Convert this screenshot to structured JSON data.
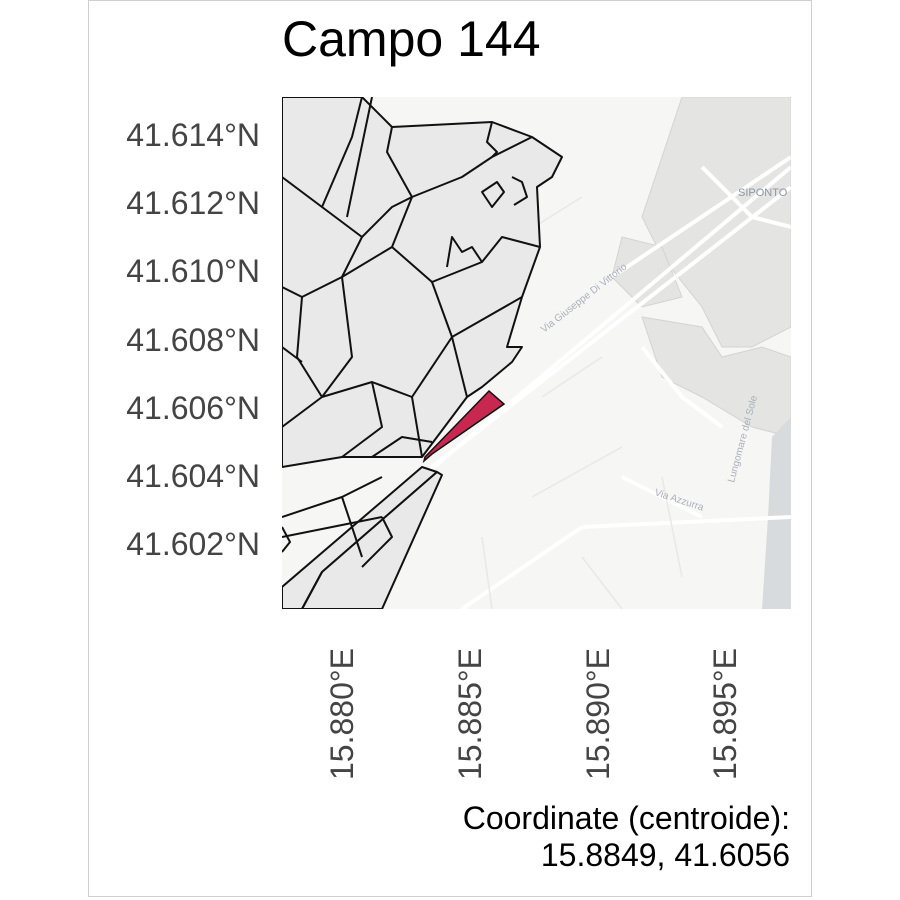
{
  "title": "Campo 144",
  "y_axis_labels": [
    "41.614°N",
    "41.612°N",
    "41.610°N",
    "41.608°N",
    "41.606°N",
    "41.604°N",
    "41.602°N"
  ],
  "x_axis_labels": [
    "15.880°E",
    "15.885°E",
    "15.890°E",
    "15.895°E"
  ],
  "caption": {
    "line1": "Coordinate (centroide):",
    "line2": "15.8849, 41.6056"
  },
  "basemap_labels": {
    "road1": "Via Giuseppe Di Vittorio",
    "road2": "Via Azzurra",
    "road3": "Lungomare del Sole",
    "place": "SIPONTO"
  },
  "colors": {
    "highlight": "#c8284f",
    "parcel_fill": "#e9e9e9",
    "parcel_stroke": "#111111",
    "basemap": "#f6f6f4"
  }
}
